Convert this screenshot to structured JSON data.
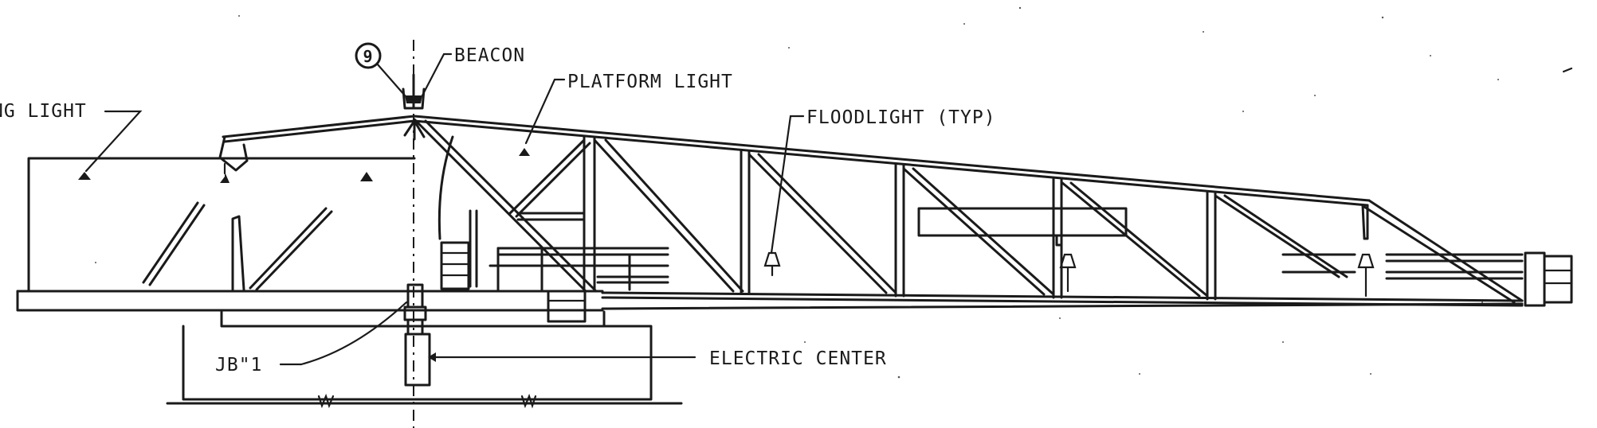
{
  "labels": {
    "beacon": "BEACON",
    "platform_light": "PLATFORM LIGHT",
    "floodlight": "FLOODLIGHT (TYP)",
    "walkway_light": "NG LIGHT",
    "junction_box": "JB\"1",
    "electric_center": "ELECTRIC CENTER",
    "callout_number": "9"
  }
}
